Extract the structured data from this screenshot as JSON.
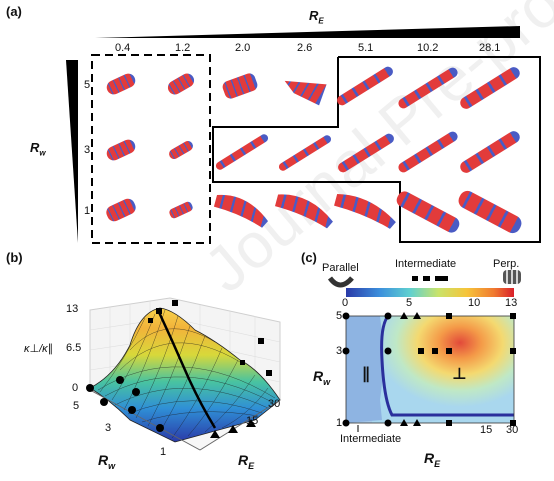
{
  "panel_a": {
    "label": "(a)",
    "re_axis_label": "R",
    "re_axis_sub": "E",
    "rw_axis_label": "R",
    "rw_axis_sub": "w",
    "re_values": [
      "0.4",
      "1.2",
      "2.0",
      "2.6",
      "5.1",
      "10.2",
      "28.1"
    ],
    "rw_values": [
      "5",
      "3",
      "1"
    ]
  },
  "panel_b": {
    "label": "(b)",
    "z_label": "κ⊥/κ∥",
    "z_ticks": [
      "13",
      "6.5",
      "0"
    ],
    "rw_ticks": [
      "5",
      "3",
      "1"
    ],
    "re_ticks": [
      "15",
      "30"
    ],
    "rw_axis_label": "R",
    "rw_axis_sub": "w",
    "re_axis_label": "R",
    "re_axis_sub": "E"
  },
  "panel_c": {
    "label": "(c)",
    "legend_parallel": "Parallel",
    "legend_intermediate": "Intermediate",
    "legend_perp": "Perp.",
    "colorbar_ticks": [
      "0",
      "5",
      "10",
      "13"
    ],
    "y_ticks": [
      "5",
      "3",
      "1"
    ],
    "x_ticks": [
      "15",
      "30"
    ],
    "region_parallel": "∥",
    "region_perp": "⊥",
    "callout": "Intermediate",
    "rw_axis_label": "R",
    "rw_axis_sub": "w",
    "re_axis_label": "R",
    "re_axis_sub": "E"
  },
  "watermark": "Journal Pre-proofs",
  "colors": {
    "rod_red": "#e23b3b",
    "rod_blue": "#4a5bc4",
    "contour": "#2a2f9c"
  }
}
